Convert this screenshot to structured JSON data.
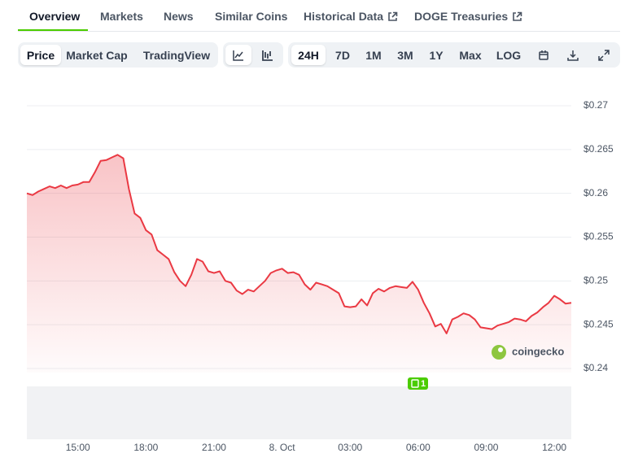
{
  "tabs": [
    "Overview",
    "Markets",
    "News",
    "Similar Coins",
    "Historical Data",
    "DOGE Treasuries"
  ],
  "toolbar": {
    "modes": [
      "Price",
      "Market Cap",
      "TradingView"
    ],
    "ranges": [
      "24H",
      "7D",
      "1M",
      "3M",
      "1Y",
      "Max",
      "LOG"
    ]
  },
  "chart_data": {
    "type": "line",
    "color": "#ea3943",
    "grid": true,
    "watermark": "coingecko",
    "event_badge": "1",
    "categories": [
      null,
      null,
      null,
      null,
      null,
      null,
      null,
      null,
      null,
      "15:00",
      null,
      null,
      null,
      null,
      null,
      null,
      null,
      null,
      null,
      null,
      null,
      "18:00",
      null,
      null,
      null,
      null,
      null,
      null,
      null,
      null,
      null,
      null,
      null,
      "21:00",
      null,
      null,
      null,
      null,
      null,
      null,
      null,
      null,
      null,
      null,
      null,
      "8. Oct",
      null,
      null,
      null,
      null,
      null,
      null,
      null,
      null,
      null,
      null,
      null,
      "03:00",
      null,
      null,
      null,
      null,
      null,
      null,
      null,
      null,
      null,
      null,
      null,
      "06:00",
      null,
      null,
      null,
      null,
      null,
      null,
      null,
      null,
      null,
      null,
      null,
      "09:00",
      null,
      null,
      null,
      null,
      null,
      null,
      null,
      null,
      null,
      null,
      null,
      "12:00",
      null,
      null,
      null
    ],
    "values": [
      0.26,
      0.2598,
      0.2602,
      0.2605,
      0.2608,
      0.2606,
      0.2609,
      0.2606,
      0.2609,
      0.261,
      0.2613,
      0.2613,
      0.2624,
      0.2637,
      0.2638,
      0.2641,
      0.2644,
      0.264,
      0.2605,
      0.2577,
      0.2572,
      0.2558,
      0.2553,
      0.2535,
      0.253,
      0.2525,
      0.251,
      0.25,
      0.2494,
      0.2507,
      0.2525,
      0.2522,
      0.2511,
      0.2509,
      0.2511,
      0.25,
      0.2498,
      0.2489,
      0.2485,
      0.249,
      0.2488,
      0.2494,
      0.25,
      0.2509,
      0.2512,
      0.2514,
      0.2509,
      0.251,
      0.2507,
      0.2496,
      0.249,
      0.2498,
      0.2496,
      0.2494,
      0.249,
      0.2486,
      0.2471,
      0.247,
      0.2471,
      0.2479,
      0.2472,
      0.2486,
      0.2491,
      0.2488,
      0.2492,
      0.2494,
      0.2493,
      0.2492,
      0.2499,
      0.249,
      0.2475,
      0.2463,
      0.2448,
      0.2451,
      0.244,
      0.2456,
      0.2459,
      0.2463,
      0.2461,
      0.2456,
      0.2447,
      0.2446,
      0.2445,
      0.2449,
      0.2451,
      0.2453,
      0.2457,
      0.2456,
      0.2454,
      0.246,
      0.2464,
      0.247,
      0.2475,
      0.2483,
      0.2479,
      0.2474,
      0.2475
    ],
    "ylim": [
      0.24,
      0.27
    ],
    "yticks": [
      {
        "value": 0.24,
        "label": "$0.24"
      },
      {
        "value": 0.245,
        "label": "$0.245"
      },
      {
        "value": 0.25,
        "label": "$0.25"
      },
      {
        "value": 0.255,
        "label": "$0.255"
      },
      {
        "value": 0.26,
        "label": "$0.26"
      },
      {
        "value": 0.265,
        "label": "$0.265"
      },
      {
        "value": 0.27,
        "label": "$0.27"
      }
    ]
  }
}
